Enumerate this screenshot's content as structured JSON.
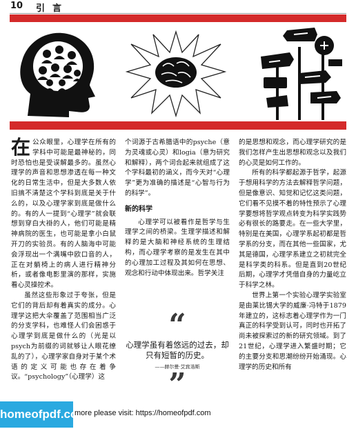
{
  "header": {
    "page_number": "10",
    "section_title": "引言"
  },
  "colors": {
    "accent_red": "#d42a2a",
    "watermark_blue": "#2aa9e0"
  },
  "illustrations": [
    {
      "icon": "head-with-faces-icon"
    },
    {
      "icon": "brain-starburst-icon"
    },
    {
      "icon": "signposts-icon"
    }
  ],
  "column1": {
    "dropcap": "在",
    "paragraphs": [
      "公众眼里，心理学在所有的学科中可能是最神秘的，同时恐怕也是受误解最多的。虽然心理学的声音和思想渗透在每一种文化的日常生活中，但是大多数人依旧搞不清楚这个学科到底是关于什么的，以及心理学家到底是做什么的。有的人一提到“心理学”就会联想到穿白大褂的人，他们可能是精神病院的医生，也可能是拿小白鼠开刀的实验员。有的人脑海中可能会浮现出一个满嘴中欧口音的人，正在对躺椅上的病人进行精神分析，或者像电影里演的那样，实施看心灵操控术。",
      "虽然这些形象过于夸张，但是它们的背后却有着真实的成分。心理学这把大伞覆盖了范围相当广泛的分支学科，也难怪人们会困惑于心理学到底是做什么的（光是以psych为前缀的词就够让人眼花缭乱的了），心理学家自身对于某个术语的定义可能也存在着争议。“psychology”（心理学）这"
    ]
  },
  "column2": {
    "paragraphs_before": [
      "个词源于古希腊语中的psyche（意为灵魂或心灵）和logia（意为研究和解释），两个词合起来就组成了这个学科最初的涵义，而今天对“心理学”更为准确的描述是“心智与行为的科学”。"
    ],
    "subhead": "新的科学",
    "paragraphs_after": [
      "心理学可以被看作是哲学与生理学之间的桥梁。生理学描述和解释的是大脑和神经系统的生理结构，而心理学考察的是发生在其中的心理加工过程及其如何在思想、观念和行动中体现出来。哲学关注"
    ]
  },
  "quote": {
    "open_mark": "“",
    "text": "心理学虽有着悠远的过去，却只有短暂的历史。",
    "attribution": "——赫尔曼·艾宾浩斯",
    "close_mark": "”"
  },
  "column3": {
    "paragraphs": [
      "的是思想和观念，而心理学研究的是我们怎样产生出思想和观念以及我们的心灵是如何工作的。",
      "所有的科学都起源于哲学，起源于想用科学的方法去解释哲学问题，但是像意识、知觉和记忆这类问题，它们看不见摸不着的特性预示了心理学要想将哲学观点转变为科学实践势必有很长的路要走。在一些大学里，特别是在美国，心理学系起初都是哲学系的分支，而在其他一些国家，尤其是德国，心理学系建立之初就完全是科学类的科系。但是直到20世纪后期，心理学才凭借自身的力量屹立于科学之林。",
      "世界上第一个实验心理学实验室是由莱比锡大学的威廉·冯特于1879年建立的，这标志着心理学作为一门真正的科学受到认可，同时也开拓了尚未被探索过的新的研究领域。到了21世纪，心理学进入繁盛时期；它的主要分支和思潮纷纷开始涌现。心理学的历史和所有"
    ]
  },
  "watermark": {
    "logo_text": "homeofpdf.com",
    "text": "more please visit: https://homeofpdf.com"
  }
}
